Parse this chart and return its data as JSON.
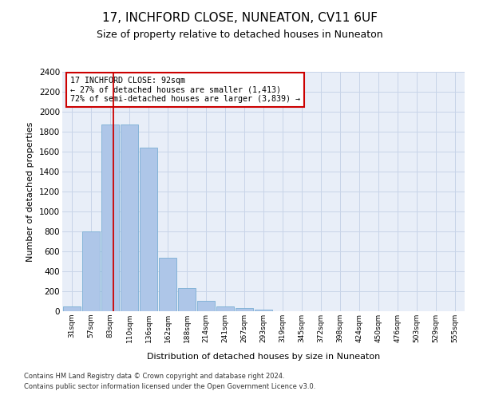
{
  "title": "17, INCHFORD CLOSE, NUNEATON, CV11 6UF",
  "subtitle": "Size of property relative to detached houses in Nuneaton",
  "xlabel": "Distribution of detached houses by size in Nuneaton",
  "ylabel": "Number of detached properties",
  "categories": [
    "31sqm",
    "57sqm",
    "83sqm",
    "110sqm",
    "136sqm",
    "162sqm",
    "188sqm",
    "214sqm",
    "241sqm",
    "267sqm",
    "293sqm",
    "319sqm",
    "345sqm",
    "372sqm",
    "398sqm",
    "424sqm",
    "450sqm",
    "476sqm",
    "503sqm",
    "529sqm",
    "555sqm"
  ],
  "values": [
    50,
    800,
    1870,
    1870,
    1640,
    535,
    235,
    105,
    50,
    30,
    20,
    0,
    0,
    0,
    0,
    0,
    0,
    0,
    0,
    0,
    0
  ],
  "bar_color": "#aec6e8",
  "bar_edgecolor": "#7aafd4",
  "vline_color": "#cc0000",
  "annotation_text": "17 INCHFORD CLOSE: 92sqm\n← 27% of detached houses are smaller (1,413)\n72% of semi-detached houses are larger (3,839) →",
  "annotation_box_color": "#ffffff",
  "annotation_box_edgecolor": "#cc0000",
  "ylim": [
    0,
    2400
  ],
  "yticks": [
    0,
    200,
    400,
    600,
    800,
    1000,
    1200,
    1400,
    1600,
    1800,
    2000,
    2200,
    2400
  ],
  "grid_color": "#c8d4e8",
  "background_color": "#e8eef8",
  "footer1": "Contains HM Land Registry data © Crown copyright and database right 2024.",
  "footer2": "Contains public sector information licensed under the Open Government Licence v3.0.",
  "title_fontsize": 11,
  "subtitle_fontsize": 9,
  "vline_pos": 2.15
}
